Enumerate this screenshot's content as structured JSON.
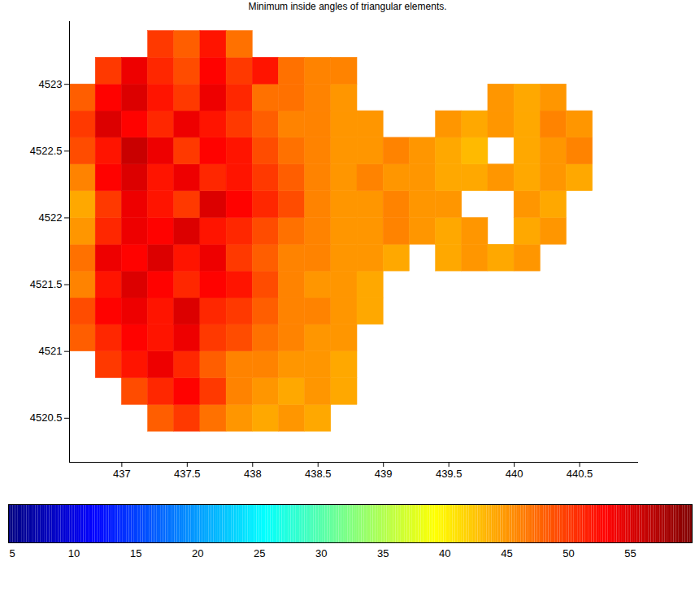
{
  "chart_data": {
    "type": "heatmap",
    "title": "Minimum inside angles of triangular elements.",
    "xlim": [
      436.6,
      440.95
    ],
    "xticks": [
      437,
      437.5,
      438,
      438.5,
      439,
      439.5,
      440,
      440.5
    ],
    "ylim": [
      4520.17,
      4523.47
    ],
    "yticks": [
      4520.5,
      4521,
      4521.5,
      4522,
      4522.5,
      4523
    ],
    "grid": false,
    "cells": {
      "x_edges": [
        436.6,
        436.8,
        437.0,
        437.2,
        437.4,
        437.6,
        437.8,
        438.0,
        438.2,
        438.4,
        438.6,
        438.8,
        439.0,
        439.2,
        439.4,
        439.6,
        439.8,
        440.0,
        440.2,
        440.4,
        440.6
      ],
      "y_edges": [
        4520.4,
        4520.6,
        4520.8,
        4521.0,
        4521.2,
        4521.4,
        4521.6,
        4521.8,
        4522.0,
        4522.2,
        4522.4,
        4522.6,
        4522.8,
        4523.0,
        4523.2,
        4523.4
      ],
      "values": [
        [
          null,
          null,
          null,
          48,
          50,
          47,
          45,
          44,
          45,
          44,
          null,
          null,
          null,
          null,
          null,
          null,
          null,
          null,
          null,
          null
        ],
        [
          null,
          null,
          49,
          51,
          53,
          50,
          46,
          45,
          44,
          45,
          44,
          null,
          null,
          null,
          null,
          null,
          null,
          null,
          null,
          null
        ],
        [
          null,
          50,
          52,
          54,
          51,
          48,
          46,
          46,
          45,
          45,
          44,
          null,
          null,
          null,
          null,
          null,
          null,
          null,
          null,
          null
        ],
        [
          48,
          51,
          53,
          52,
          54,
          50,
          49,
          47,
          46,
          45,
          45,
          null,
          null,
          null,
          null,
          null,
          null,
          null,
          null,
          null
        ],
        [
          49,
          53,
          54,
          52,
          55,
          51,
          50,
          48,
          46,
          46,
          45,
          44,
          null,
          null,
          null,
          null,
          null,
          null,
          null,
          null
        ],
        [
          46,
          52,
          55,
          53,
          51,
          53,
          52,
          49,
          46,
          45,
          45,
          44,
          null,
          null,
          null,
          null,
          null,
          null,
          null,
          null
        ],
        [
          47,
          54,
          53,
          55,
          52,
          54,
          50,
          48,
          46,
          46,
          45,
          45,
          44,
          null,
          44,
          45,
          44,
          45,
          null,
          null
        ],
        [
          45,
          51,
          54,
          53,
          55,
          52,
          51,
          49,
          47,
          46,
          45,
          45,
          46,
          45,
          44,
          45,
          null,
          44,
          45,
          null
        ],
        [
          44,
          50,
          54,
          52,
          50,
          55,
          53,
          51,
          49,
          46,
          45,
          45,
          46,
          45,
          45,
          null,
          null,
          45,
          44,
          null
        ],
        [
          46,
          53,
          55,
          52,
          54,
          51,
          52,
          50,
          48,
          46,
          45,
          46,
          45,
          45,
          44,
          44,
          45,
          44,
          45,
          44
        ],
        [
          49,
          52,
          56,
          54,
          50,
          53,
          52,
          49,
          47,
          46,
          45,
          45,
          46,
          45,
          44,
          43,
          null,
          44,
          45,
          46
        ],
        [
          50,
          55,
          53,
          51,
          54,
          52,
          50,
          48,
          46,
          46,
          45,
          45,
          null,
          null,
          45,
          44,
          45,
          44,
          46,
          45
        ],
        [
          48,
          53,
          55,
          52,
          50,
          54,
          51,
          47,
          47,
          46,
          45,
          null,
          null,
          null,
          null,
          null,
          45,
          44,
          45,
          null
        ],
        [
          null,
          50,
          54,
          51,
          49,
          53,
          50,
          52,
          47,
          46,
          46,
          null,
          null,
          null,
          null,
          null,
          null,
          null,
          null,
          null
        ],
        [
          null,
          null,
          null,
          50,
          48,
          52,
          47,
          null,
          null,
          null,
          null,
          null,
          null,
          null,
          null,
          null,
          null,
          null,
          null,
          null
        ]
      ]
    },
    "colorbar": {
      "range": [
        4.7,
        60
      ],
      "ticks": [
        5,
        10,
        15,
        20,
        25,
        30,
        35,
        40,
        45,
        50,
        55
      ]
    }
  }
}
